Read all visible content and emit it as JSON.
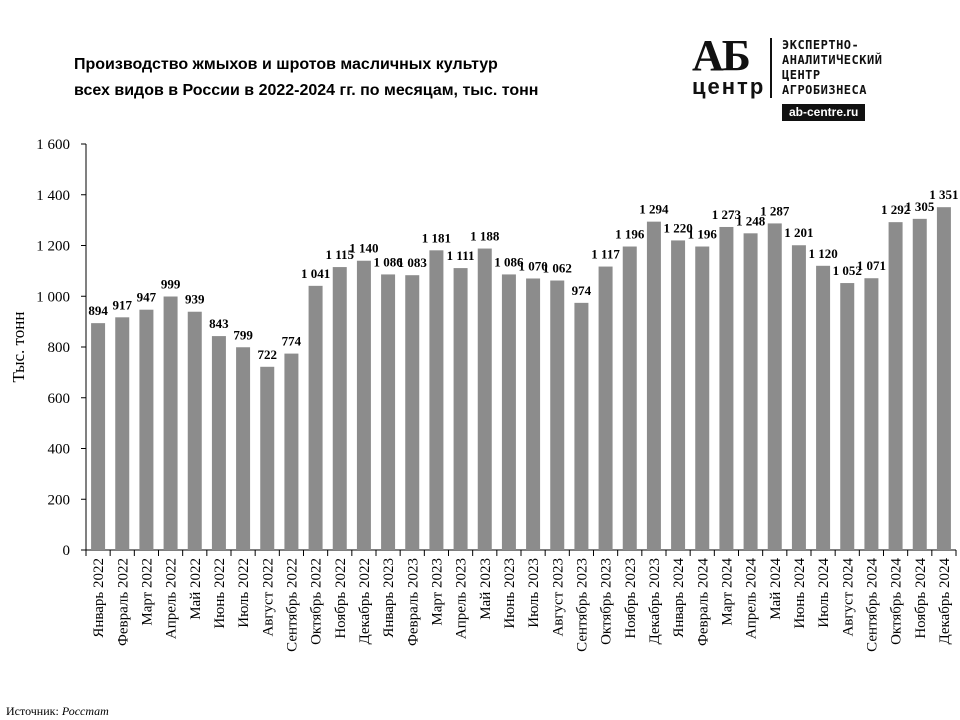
{
  "title_lines": [
    "Производство  жмыхов  и шротов  масличных культур",
    "всех видов в России в 2022-2024 гг. по месяцам, тыс. тонн"
  ],
  "logo": {
    "letters": "АБ",
    "word": "центр",
    "desc_lines": [
      "ЭКСПЕРТНО-",
      "АНАЛИТИЧЕСКИЙ",
      "ЦЕНТР",
      "АГРОБИЗНЕСА"
    ],
    "site": "ab-centre.ru"
  },
  "source": {
    "label": "Источник:",
    "name": "Росстат"
  },
  "colors": {
    "bar": "#8c8c8c",
    "axis": "#000000"
  },
  "chart_data": {
    "type": "bar",
    "ylabel": "Тыс. тонн",
    "ylim": [
      0,
      1600
    ],
    "yticks": [
      0,
      200,
      400,
      600,
      800,
      1000,
      1200,
      1400,
      1600
    ],
    "ytick_labels": [
      "0",
      "200",
      "400",
      "600",
      "800",
      "1 000",
      "1 200",
      "1 400",
      "1 600"
    ],
    "grid": false,
    "categories": [
      "Январь 2022",
      "Февраль 2022",
      "Март 2022",
      "Апрель 2022",
      "Май 2022",
      "Июнь 2022",
      "Июль 2022",
      "Август 2022",
      "Сентябрь 2022",
      "Октябрь 2022",
      "Ноябрь 2022",
      "Декабрь 2022",
      "Январь 2023",
      "Февраль 2023",
      "Март 2023",
      "Апрель 2023",
      "Май 2023",
      "Июнь 2023",
      "Июль 2023",
      "Август 2023",
      "Сентябрь 2023",
      "Октябрь 2023",
      "Ноябрь 2023",
      "Декабрь 2023",
      "Январь 2024",
      "Февраль 2024",
      "Март 2024",
      "Апрель 2024",
      "Май 2024",
      "Июнь 2024",
      "Июль 2024",
      "Август 2024",
      "Сентябрь 2024",
      "Октябрь 2024",
      "Ноябрь 2024",
      "Декабрь 2024"
    ],
    "values": [
      894,
      917,
      947,
      999,
      939,
      843,
      799,
      722,
      774,
      1041,
      1115,
      1140,
      1086,
      1083,
      1181,
      1111,
      1188,
      1086,
      1070,
      1062,
      974,
      1117,
      1196,
      1294,
      1220,
      1196,
      1273,
      1248,
      1287,
      1201,
      1120,
      1052,
      1071,
      1292,
      1305,
      1351
    ],
    "value_labels": [
      "894",
      "917",
      "947",
      "999",
      "939",
      "843",
      "799",
      "722",
      "774",
      "1 041",
      "1 115",
      "1 140",
      "1 086",
      "1 083",
      "1 181",
      "1 111",
      "1 188",
      "1 086",
      "1 070",
      "1 062",
      "974",
      "1 117",
      "1 196",
      "1 294",
      "1 220",
      "1 196",
      "1 273",
      "1 248",
      "1 287",
      "1 201",
      "1 120",
      "1 052",
      "1 071",
      "1 292",
      "1 305",
      "1 351"
    ]
  }
}
